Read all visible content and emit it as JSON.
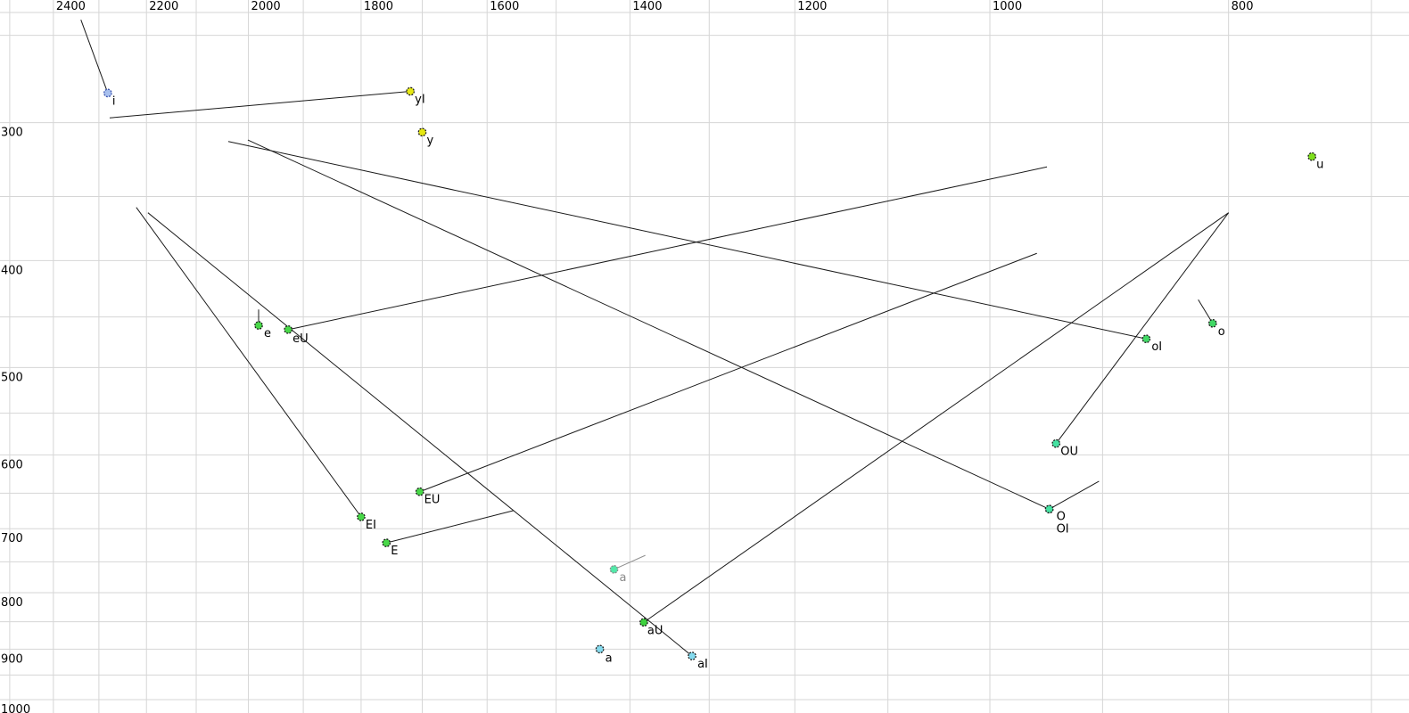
{
  "chart_data": {
    "type": "scatter",
    "title": "",
    "description": "Vowel formant chart: F2 (Hz) on top axis (log scale, decreasing rightward), F1 (Hz) on left axis (log scale, increasing downward); vowel tokens plotted as colored circles with labels and diphthong trajectory lines",
    "x_axis": {
      "side": "top",
      "scale": "log",
      "reversed": true,
      "tick_values": [
        2400,
        2200,
        2000,
        1800,
        1600,
        1400,
        1200,
        1000,
        800
      ],
      "grid_min": 700,
      "grid_max": 2500,
      "grid_step": 100
    },
    "y_axis": {
      "side": "left",
      "scale": "log",
      "tick_values": [
        300,
        400,
        500,
        600,
        700,
        800,
        900,
        1000
      ],
      "grid_min": 250,
      "grid_max": 1000,
      "grid_step": 50
    },
    "points": [
      {
        "id": "i",
        "label": "i",
        "f2": 2281,
        "f1": 282,
        "fill": "#a8c0ee",
        "stroke": "#3c55b0",
        "muted": false,
        "trajectory_end": [
          2339,
          242
        ],
        "label_offset": [
          5,
          13
        ]
      },
      {
        "id": "yI",
        "label": "yI",
        "f2": 1719,
        "f1": 281,
        "fill": "#e6e812",
        "stroke": "#1a1a1a",
        "muted": false,
        "trajectory_end": [
          2277,
          297
        ],
        "label_offset": [
          5,
          13
        ]
      },
      {
        "id": "y",
        "label": "y",
        "f2": 1700,
        "f1": 306,
        "fill": "#e6e812",
        "stroke": "#1a1a1a",
        "muted": false,
        "trajectory_end": null,
        "label_offset": [
          5,
          13
        ]
      },
      {
        "id": "u",
        "label": "u",
        "f2": 740,
        "f1": 322,
        "fill": "#7fe01c",
        "stroke": "#1a1a1a",
        "muted": false,
        "trajectory_end": null,
        "label_offset": [
          5,
          13
        ]
      },
      {
        "id": "e",
        "label": "e",
        "f2": 1981,
        "f1": 458,
        "fill": "#48d848",
        "stroke": "#1a1a1a",
        "muted": false,
        "trajectory_end": [
          1981,
          443
        ],
        "label_offset": [
          6,
          13
        ]
      },
      {
        "id": "eU",
        "label": "eU",
        "f2": 1927,
        "f1": 462,
        "fill": "#48d848",
        "stroke": "#1a1a1a",
        "muted": false,
        "trajectory_end": [
          948,
          329
        ],
        "label_offset": [
          5,
          14
        ]
      },
      {
        "id": "o",
        "label": "o",
        "f2": 812,
        "f1": 456,
        "fill": "#42d966",
        "stroke": "#1a1a1a",
        "muted": false,
        "trajectory_end": [
          823,
          434
        ],
        "label_offset": [
          6,
          13
        ]
      },
      {
        "id": "oI",
        "label": "oI",
        "f2": 864,
        "f1": 471,
        "fill": "#42d966",
        "stroke": "#1a1a1a",
        "muted": false,
        "trajectory_end": [
          2038,
          312
        ],
        "label_offset": [
          6,
          13
        ]
      },
      {
        "id": "OU",
        "label": "OU",
        "f2": 940,
        "f1": 586,
        "fill": "#45e2a2",
        "stroke": "#1a1a1a",
        "muted": false,
        "trajectory_end": [
          800,
          362
        ],
        "label_offset": [
          5,
          13
        ]
      },
      {
        "id": "OI",
        "label": "OI",
        "f2": 946,
        "f1": 672,
        "fill": "#45e2a2",
        "stroke": "#1a1a1a",
        "muted": false,
        "trajectory_end": [
          2001,
          311
        ],
        "label_offset": [
          8,
          26
        ]
      },
      {
        "id": "O",
        "label": "O",
        "f2": 946,
        "f1": 672,
        "fill": "#45e2a2",
        "stroke": "#1a1a1a",
        "muted": false,
        "trajectory_end": [
          903,
          634
        ],
        "label_offset": [
          8,
          12
        ]
      },
      {
        "id": "EU",
        "label": "EU",
        "f2": 1704,
        "f1": 648,
        "fill": "#48d848",
        "stroke": "#1a1a1a",
        "muted": false,
        "trajectory_end": [
          957,
          394
        ],
        "label_offset": [
          5,
          13
        ]
      },
      {
        "id": "EI",
        "label": "EI",
        "f2": 1800,
        "f1": 683,
        "fill": "#48d848",
        "stroke": "#1a1a1a",
        "muted": false,
        "trajectory_end": [
          2221,
          358
        ],
        "label_offset": [
          5,
          13
        ]
      },
      {
        "id": "E",
        "label": "E",
        "f2": 1758,
        "f1": 721,
        "fill": "#48d848",
        "stroke": "#1a1a1a",
        "muted": false,
        "trajectory_end": [
          1561,
          674
        ],
        "label_offset": [
          5,
          13
        ]
      },
      {
        "id": "a-muted",
        "label": "a",
        "f2": 1421,
        "f1": 762,
        "fill": "#52e8a8",
        "stroke": "#8a8a8a",
        "muted": true,
        "trajectory_end": [
          1380,
          740
        ],
        "label_offset": [
          6,
          13
        ]
      },
      {
        "id": "aU",
        "label": "aU",
        "f2": 1382,
        "f1": 851,
        "fill": "#3ed23e",
        "stroke": "#1a1a1a",
        "muted": false,
        "trajectory_end": [
          800,
          362
        ],
        "label_offset": [
          4,
          13
        ]
      },
      {
        "id": "a",
        "label": "a",
        "f2": 1440,
        "f1": 900,
        "fill": "#84daee",
        "stroke": "#1a1a1a",
        "muted": false,
        "trajectory_end": null,
        "label_offset": [
          6,
          14
        ]
      },
      {
        "id": "aI",
        "label": "aI",
        "f2": 1321,
        "f1": 913,
        "fill": "#84daee",
        "stroke": "#1a1a1a",
        "muted": false,
        "trajectory_end": [
          2197,
          362
        ],
        "label_offset": [
          6,
          13
        ]
      }
    ],
    "style": {
      "background": "#ffffff",
      "grid_color": "#d6d6d6",
      "trajectory_color": "#1a1a1a",
      "muted_color": "#8f8f8f",
      "muted_label_color": "#8a8a8a",
      "tick_label_color": "#000000",
      "point_label_color": "#000000"
    }
  }
}
